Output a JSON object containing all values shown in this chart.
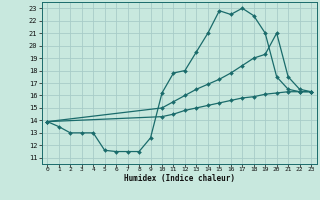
{
  "xlabel": "Humidex (Indice chaleur)",
  "bg_color": "#c8e8de",
  "grid_color": "#a8ccc8",
  "line_color": "#1a6b6b",
  "xlim": [
    -0.5,
    23.5
  ],
  "ylim": [
    10.5,
    23.5
  ],
  "xticks": [
    0,
    1,
    2,
    3,
    4,
    5,
    6,
    7,
    8,
    9,
    10,
    11,
    12,
    13,
    14,
    15,
    16,
    17,
    18,
    19,
    20,
    21,
    22,
    23
  ],
  "yticks": [
    11,
    12,
    13,
    14,
    15,
    16,
    17,
    18,
    19,
    20,
    21,
    22,
    23
  ],
  "line1_x": [
    0,
    1,
    2,
    3,
    4,
    5,
    6,
    7,
    8,
    9,
    10,
    11,
    12,
    13,
    14,
    15,
    16,
    17,
    18,
    19,
    20,
    21,
    22,
    23
  ],
  "line1_y": [
    13.9,
    13.5,
    13.0,
    13.0,
    13.0,
    11.6,
    11.5,
    11.5,
    11.5,
    12.6,
    16.2,
    17.8,
    18.0,
    19.5,
    21.0,
    22.8,
    22.5,
    23.0,
    22.4,
    21.0,
    17.5,
    16.5,
    16.3,
    16.3
  ],
  "line2_x": [
    0,
    10,
    11,
    12,
    13,
    14,
    15,
    16,
    17,
    18,
    19,
    20,
    21,
    22,
    23
  ],
  "line2_y": [
    13.9,
    15.0,
    15.5,
    16.0,
    16.5,
    16.9,
    17.3,
    17.8,
    18.4,
    19.0,
    19.3,
    21.0,
    17.5,
    16.5,
    16.3
  ],
  "line3_x": [
    0,
    10,
    11,
    12,
    13,
    14,
    15,
    16,
    17,
    18,
    19,
    20,
    21,
    22,
    23
  ],
  "line3_y": [
    13.9,
    14.3,
    14.5,
    14.8,
    15.0,
    15.2,
    15.4,
    15.6,
    15.8,
    15.9,
    16.1,
    16.2,
    16.3,
    16.3,
    16.3
  ]
}
